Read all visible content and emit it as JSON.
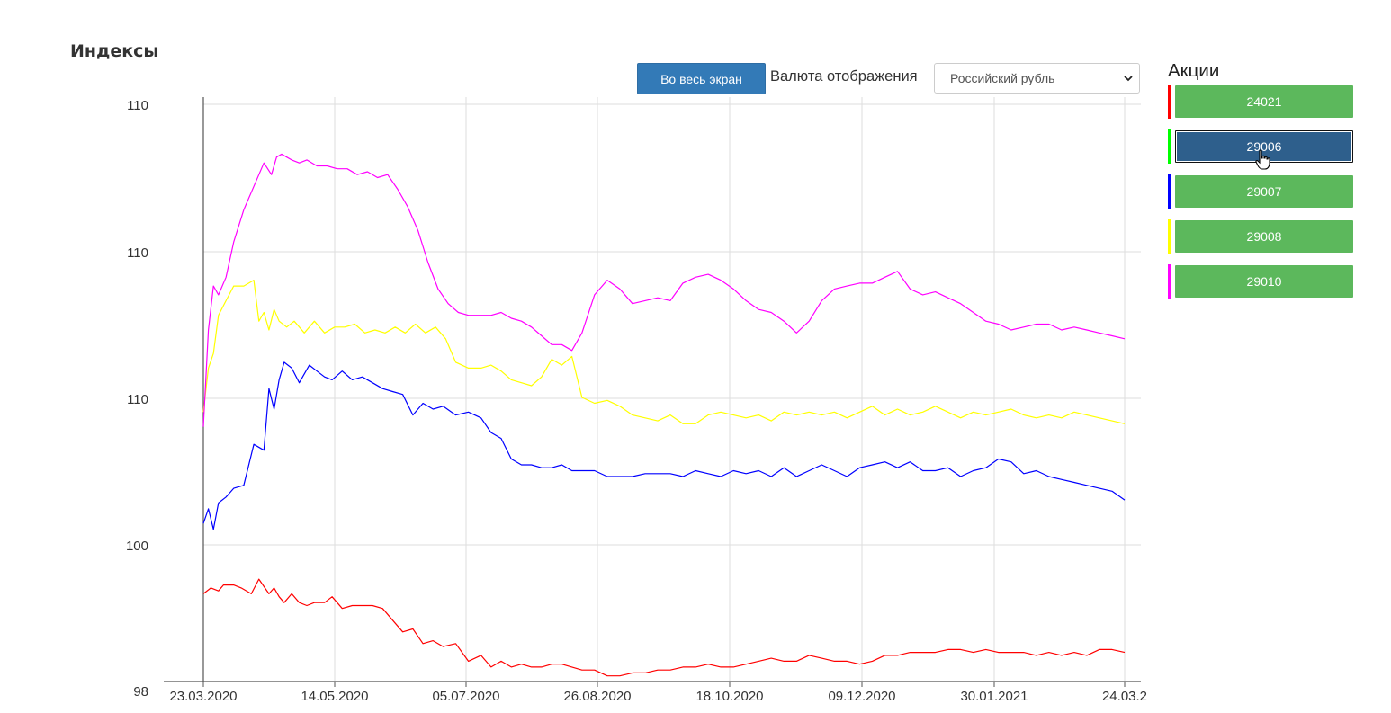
{
  "page": {
    "title": "Индексы"
  },
  "toolbar": {
    "fullscreen_label": "Во весь экран",
    "currency_label": "Валюта отображения",
    "currency_value": "Российский рубль"
  },
  "sidebar": {
    "title": "Акции",
    "items": [
      {
        "label": "24021",
        "color": "#ff0000",
        "active": false
      },
      {
        "label": "29006",
        "color": "#00ff00",
        "active": true
      },
      {
        "label": "29007",
        "color": "#0000ff",
        "active": false
      },
      {
        "label": "29008",
        "color": "#ffff00",
        "active": false
      },
      {
        "label": "29010",
        "color": "#ff00ff",
        "active": false
      }
    ]
  },
  "chart_data": {
    "type": "line",
    "yticks": [
      "110",
      "110",
      "110",
      "100",
      "98"
    ],
    "xticks": [
      "23.03.2020",
      "14.05.2020",
      "05.07.2020",
      "26.08.2020",
      "18.10.2020",
      "09.12.2020",
      "30.01.2021",
      "24.03.2"
    ],
    "ylim": [
      98,
      118
    ],
    "grid": true,
    "series": [
      {
        "name": "24021",
        "color": "#ff0000",
        "x": [
          0,
          3,
          6,
          8,
          12,
          15,
          19,
          22,
          26,
          28,
          30,
          32,
          35,
          38,
          41,
          44,
          48,
          51,
          55,
          59,
          63,
          67,
          71,
          75,
          79,
          83,
          87,
          91,
          95,
          100,
          105,
          110,
          114,
          118,
          122,
          126,
          130,
          134,
          138,
          142,
          146,
          150,
          155,
          160,
          165,
          170,
          175,
          180,
          185,
          190,
          195,
          200,
          205,
          210,
          215,
          220,
          225,
          230,
          235,
          240,
          245,
          250,
          255,
          260,
          265,
          270,
          275,
          280,
          285,
          290,
          295,
          300,
          305,
          310,
          315,
          320,
          325,
          330,
          335,
          340,
          345,
          350,
          355,
          360,
          365
        ],
        "y": [
          101.3,
          101.5,
          101.4,
          101.6,
          101.6,
          101.5,
          101.3,
          101.8,
          101.3,
          101.5,
          101.2,
          101.0,
          101.3,
          101.0,
          100.9,
          101.0,
          101.0,
          101.2,
          100.8,
          100.9,
          100.9,
          100.9,
          100.8,
          100.4,
          100.0,
          100.1,
          99.6,
          99.7,
          99.5,
          99.6,
          99.0,
          99.2,
          98.8,
          99.0,
          98.8,
          98.9,
          98.8,
          98.8,
          98.9,
          98.9,
          98.8,
          98.7,
          98.7,
          98.5,
          98.5,
          98.6,
          98.6,
          98.7,
          98.7,
          98.8,
          98.8,
          98.9,
          98.8,
          98.8,
          98.9,
          99.0,
          99.1,
          99.0,
          99.0,
          99.2,
          99.1,
          99.0,
          99.0,
          98.9,
          99.0,
          99.2,
          99.2,
          99.3,
          99.3,
          99.3,
          99.4,
          99.4,
          99.3,
          99.4,
          99.3,
          99.3,
          99.3,
          99.2,
          99.3,
          99.2,
          99.3,
          99.2,
          99.4,
          99.4,
          99.3
        ]
      },
      {
        "name": "29007",
        "color": "#0000ff",
        "x": [
          0,
          2,
          4,
          6,
          9,
          12,
          16,
          20,
          24,
          26,
          28,
          30,
          32,
          35,
          38,
          42,
          45,
          48,
          51,
          55,
          59,
          63,
          67,
          71,
          75,
          79,
          83,
          87,
          91,
          95,
          100,
          105,
          110,
          114,
          118,
          122,
          126,
          130,
          134,
          138,
          142,
          146,
          150,
          155,
          160,
          165,
          170,
          175,
          180,
          185,
          190,
          195,
          200,
          205,
          210,
          215,
          220,
          225,
          230,
          235,
          240,
          245,
          250,
          255,
          260,
          265,
          270,
          275,
          280,
          285,
          290,
          295,
          300,
          305,
          310,
          315,
          320,
          325,
          330,
          335,
          340,
          345,
          350,
          355,
          360,
          365
        ],
        "y": [
          103.7,
          104.2,
          103.5,
          104.4,
          104.6,
          104.9,
          105.0,
          106.4,
          106.2,
          108.3,
          107.6,
          108.6,
          109.2,
          109.0,
          108.5,
          109.1,
          108.9,
          108.7,
          108.6,
          108.9,
          108.6,
          108.7,
          108.5,
          108.3,
          108.2,
          108.1,
          107.4,
          107.8,
          107.6,
          107.7,
          107.4,
          107.5,
          107.3,
          106.8,
          106.6,
          105.9,
          105.7,
          105.7,
          105.6,
          105.6,
          105.7,
          105.5,
          105.5,
          105.5,
          105.3,
          105.3,
          105.3,
          105.4,
          105.4,
          105.4,
          105.3,
          105.5,
          105.4,
          105.3,
          105.5,
          105.4,
          105.5,
          105.3,
          105.6,
          105.3,
          105.5,
          105.7,
          105.5,
          105.3,
          105.6,
          105.7,
          105.8,
          105.6,
          105.8,
          105.5,
          105.5,
          105.6,
          105.3,
          105.5,
          105.6,
          105.9,
          105.8,
          105.4,
          105.5,
          105.3,
          105.2,
          105.1,
          105.0,
          104.9,
          104.8,
          104.5
        ]
      },
      {
        "name": "29008",
        "color": "#ffff00",
        "x": [
          0,
          2,
          4,
          6,
          9,
          12,
          16,
          20,
          22,
          24,
          26,
          28,
          30,
          33,
          36,
          40,
          44,
          48,
          52,
          56,
          60,
          64,
          68,
          72,
          76,
          80,
          84,
          88,
          92,
          96,
          100,
          105,
          110,
          114,
          118,
          122,
          126,
          130,
          134,
          138,
          142,
          146,
          150,
          155,
          160,
          165,
          170,
          175,
          180,
          185,
          190,
          195,
          200,
          205,
          210,
          215,
          220,
          225,
          230,
          235,
          240,
          245,
          250,
          255,
          260,
          265,
          270,
          275,
          280,
          285,
          290,
          295,
          300,
          305,
          310,
          315,
          320,
          325,
          330,
          335,
          340,
          345,
          350,
          355,
          360,
          365
        ],
        "y": [
          107.5,
          109.0,
          109.5,
          110.8,
          111.3,
          111.8,
          111.8,
          112.0,
          110.6,
          110.9,
          110.3,
          111.0,
          110.6,
          110.4,
          110.6,
          110.2,
          110.6,
          110.2,
          110.4,
          110.4,
          110.5,
          110.2,
          110.3,
          110.2,
          110.4,
          110.2,
          110.5,
          110.2,
          110.4,
          110.0,
          109.2,
          109.0,
          109.0,
          109.1,
          108.9,
          108.6,
          108.5,
          108.4,
          108.7,
          109.3,
          109.1,
          109.4,
          108.0,
          107.8,
          107.9,
          107.7,
          107.4,
          107.3,
          107.2,
          107.4,
          107.1,
          107.1,
          107.4,
          107.5,
          107.4,
          107.3,
          107.4,
          107.2,
          107.5,
          107.4,
          107.5,
          107.4,
          107.5,
          107.3,
          107.5,
          107.7,
          107.4,
          107.6,
          107.4,
          107.5,
          107.7,
          107.5,
          107.3,
          107.5,
          107.4,
          107.5,
          107.6,
          107.4,
          107.3,
          107.4,
          107.3,
          107.5,
          107.4,
          107.3,
          107.2,
          107.1
        ]
      },
      {
        "name": "29010",
        "color": "#ff00ff",
        "x": [
          0,
          2,
          4,
          6,
          9,
          12,
          16,
          20,
          24,
          27,
          29,
          31,
          33,
          35,
          38,
          41,
          45,
          49,
          53,
          57,
          61,
          65,
          69,
          73,
          77,
          81,
          85,
          89,
          93,
          97,
          101,
          105,
          110,
          114,
          118,
          122,
          126,
          130,
          134,
          138,
          142,
          146,
          150,
          155,
          160,
          165,
          170,
          175,
          180,
          185,
          190,
          195,
          200,
          205,
          210,
          215,
          220,
          225,
          230,
          235,
          240,
          245,
          250,
          255,
          260,
          265,
          270,
          275,
          280,
          285,
          290,
          295,
          300,
          305,
          310,
          315,
          320,
          325,
          330,
          335,
          340,
          345,
          350,
          355,
          360,
          365
        ],
        "y": [
          107.0,
          110.3,
          111.8,
          111.5,
          112.1,
          113.3,
          114.4,
          115.2,
          116.0,
          115.6,
          116.2,
          116.3,
          116.2,
          116.1,
          116.0,
          116.1,
          115.9,
          115.9,
          115.8,
          115.8,
          115.6,
          115.7,
          115.5,
          115.6,
          115.1,
          114.5,
          113.7,
          112.6,
          111.7,
          111.2,
          110.9,
          110.8,
          110.8,
          110.8,
          110.9,
          110.7,
          110.6,
          110.4,
          110.1,
          109.8,
          109.8,
          109.6,
          110.2,
          111.5,
          112.0,
          111.7,
          111.2,
          111.3,
          111.4,
          111.3,
          111.9,
          112.1,
          112.2,
          112.0,
          111.7,
          111.3,
          111.0,
          110.9,
          110.6,
          110.2,
          110.6,
          111.3,
          111.7,
          111.8,
          111.9,
          111.9,
          112.1,
          112.3,
          111.7,
          111.5,
          111.6,
          111.4,
          111.2,
          110.9,
          110.6,
          110.5,
          110.3,
          110.4,
          110.5,
          110.5,
          110.3,
          110.4,
          110.3,
          110.2,
          110.1,
          110.0
        ]
      }
    ]
  }
}
